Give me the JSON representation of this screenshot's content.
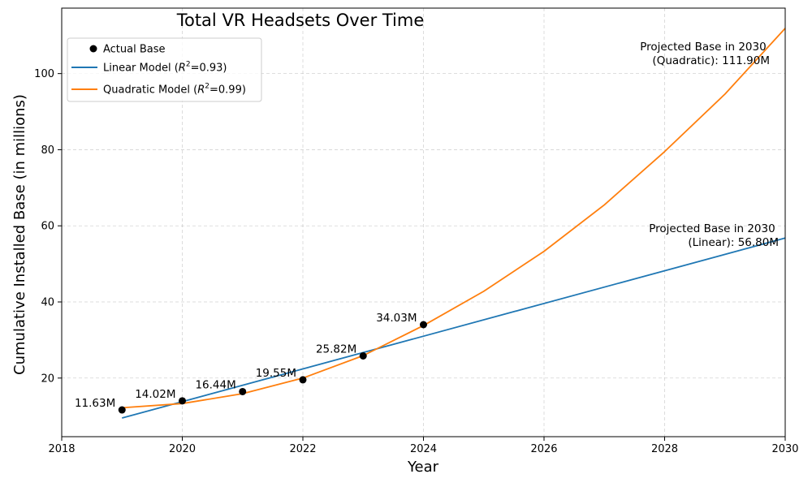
{
  "chart_data": {
    "type": "line",
    "title": "Total VR Headsets Over Time",
    "xlabel": "Year",
    "ylabel": "Cumulative Installed Base (in millions)",
    "xlim": [
      2018,
      2030
    ],
    "ylim": [
      4.6,
      117.2
    ],
    "x_ticks": [
      "2018",
      "2020",
      "2022",
      "2024",
      "2026",
      "2028",
      "2030"
    ],
    "y_ticks": [
      "20",
      "40",
      "60",
      "80",
      "100"
    ],
    "grid": true,
    "legend_position": "top-left",
    "series": [
      {
        "name": "Actual Base",
        "kind": "scatter",
        "color": "#000000",
        "x": [
          2019,
          2020,
          2021,
          2022,
          2023,
          2024
        ],
        "y": [
          11.63,
          14.02,
          16.44,
          19.55,
          25.82,
          34.03
        ],
        "labels": [
          "11.63M",
          "14.02M",
          "16.44M",
          "19.55M",
          "25.82M",
          "34.03M"
        ]
      },
      {
        "name": "Linear Model ($R^2$=0.93)",
        "legend_main": "Linear Model (",
        "legend_sup": "2",
        "legend_tail": "=0.93)",
        "kind": "line",
        "color": "#1f77b4",
        "x": [
          2019,
          2030
        ],
        "y": [
          9.5,
          56.8
        ]
      },
      {
        "name": "Quadratic Model ($R^2$=0.99)",
        "legend_main": "Quadratic Model (",
        "legend_sup": "2",
        "legend_tail": "=0.99)",
        "kind": "line",
        "color": "#ff7f0e",
        "x": [
          2019,
          2020,
          2021,
          2022,
          2023,
          2024,
          2025,
          2026,
          2027,
          2028,
          2029,
          2030
        ],
        "y": [
          12.2,
          13.3,
          15.9,
          20.0,
          25.9,
          33.8,
          42.8,
          53.3,
          65.5,
          79.5,
          94.6,
          111.9
        ]
      }
    ],
    "annotations": [
      {
        "line1": "Projected Base in 2030",
        "line2": "(Quadratic): 111.90M",
        "x": 2030,
        "y": 111.9
      },
      {
        "line1": "Projected Base in 2030",
        "line2": "(Linear): 56.80M",
        "x": 2030,
        "y": 56.8
      }
    ]
  }
}
